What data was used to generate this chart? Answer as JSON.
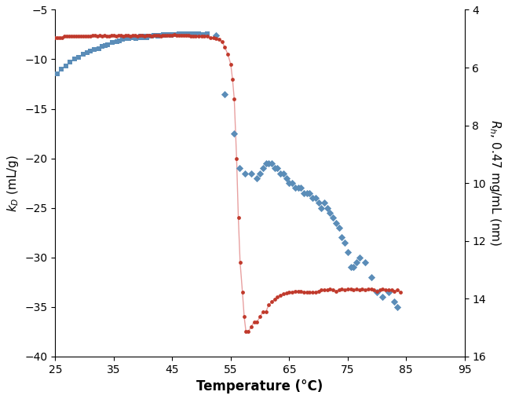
{
  "xlabel": "Temperature (°C)",
  "ylabel_left": "k$_D$ (mL/g)",
  "ylabel_right": "R$_{h}$, 0.47 mg/mL (nm)",
  "xlim": [
    25,
    95
  ],
  "ylim_left": [
    -40,
    -5
  ],
  "ylim_right": [
    16,
    4
  ],
  "xticks": [
    25,
    35,
    45,
    55,
    65,
    75,
    85,
    95
  ],
  "yticks_left": [
    -40,
    -35,
    -30,
    -25,
    -20,
    -15,
    -10,
    -5
  ],
  "yticks_right": [
    4,
    6,
    8,
    10,
    12,
    14,
    16
  ],
  "blue_squares_x": [
    25.3,
    26.0,
    26.8,
    27.5,
    28.3,
    29.0,
    29.8,
    30.5,
    31.0,
    31.7,
    32.4,
    33.0,
    33.5,
    34.0,
    34.8,
    35.5,
    36.0,
    36.5,
    37.0,
    37.5,
    38.0,
    38.5,
    38.8,
    39.2,
    39.6,
    39.8,
    40.1,
    40.4,
    40.7,
    41.0,
    41.5,
    41.8,
    42.2,
    42.5,
    42.8,
    43.2,
    43.5,
    43.8,
    44.1,
    44.4,
    44.8,
    45.1,
    45.4,
    45.8,
    46.2,
    46.5,
    46.9,
    47.2,
    47.5,
    47.9,
    48.2,
    48.6,
    49.0,
    49.5,
    50.0,
    50.5,
    51.0
  ],
  "blue_squares_y": [
    -11.5,
    -11.0,
    -10.7,
    -10.3,
    -10.0,
    -9.8,
    -9.5,
    -9.3,
    -9.2,
    -9.0,
    -8.9,
    -8.7,
    -8.6,
    -8.5,
    -8.3,
    -8.2,
    -8.1,
    -8.0,
    -7.9,
    -7.9,
    -7.8,
    -7.8,
    -7.9,
    -7.8,
    -7.7,
    -7.8,
    -7.7,
    -7.7,
    -7.8,
    -7.7,
    -7.7,
    -7.6,
    -7.6,
    -7.7,
    -7.6,
    -7.6,
    -7.5,
    -7.6,
    -7.5,
    -7.5,
    -7.6,
    -7.5,
    -7.5,
    -7.5,
    -7.4,
    -7.5,
    -7.4,
    -7.5,
    -7.4,
    -7.4,
    -7.5,
    -7.4,
    -7.4,
    -7.4,
    -7.5,
    -7.5,
    -7.4
  ],
  "blue_diamonds_x": [
    52.5,
    54.0,
    55.5,
    56.5,
    57.5,
    58.5,
    59.5,
    60.0,
    60.5,
    61.0,
    61.5,
    62.0,
    62.5,
    63.0,
    63.5,
    64.0,
    64.5,
    65.0,
    65.5,
    66.0,
    66.5,
    67.0,
    67.5,
    68.0,
    68.5,
    69.0,
    69.5,
    70.0,
    70.5,
    71.0,
    71.5,
    72.0,
    72.5,
    73.0,
    73.5,
    74.0,
    74.5,
    75.0,
    75.5,
    76.0,
    76.5,
    77.0,
    78.0,
    79.0,
    80.0,
    81.0,
    82.0,
    83.0,
    83.5
  ],
  "blue_diamonds_y": [
    -7.6,
    -13.5,
    -17.5,
    -21.0,
    -21.5,
    -21.5,
    -22.0,
    -21.5,
    -21.0,
    -20.5,
    -20.5,
    -20.5,
    -21.0,
    -21.0,
    -21.5,
    -21.5,
    -22.0,
    -22.5,
    -22.5,
    -23.0,
    -23.0,
    -23.0,
    -23.5,
    -23.5,
    -23.5,
    -24.0,
    -24.0,
    -24.5,
    -25.0,
    -24.5,
    -25.0,
    -25.5,
    -26.0,
    -26.5,
    -27.0,
    -28.0,
    -28.5,
    -29.5,
    -31.0,
    -31.0,
    -30.5,
    -30.0,
    -30.5,
    -32.0,
    -33.5,
    -34.0,
    -33.5,
    -34.5,
    -35.0
  ],
  "red_line_x": [
    25.0,
    25.4,
    25.8,
    26.2,
    26.6,
    27.0,
    27.4,
    27.8,
    28.2,
    28.6,
    29.0,
    29.4,
    29.8,
    30.2,
    30.6,
    31.0,
    31.4,
    31.8,
    32.2,
    32.6,
    33.0,
    33.4,
    33.8,
    34.2,
    34.6,
    35.0,
    35.4,
    35.8,
    36.2,
    36.6,
    37.0,
    37.4,
    37.8,
    38.2,
    38.6,
    39.0,
    39.4,
    39.8,
    40.2,
    40.6,
    41.0,
    41.4,
    41.8,
    42.2,
    42.6,
    43.0,
    43.4,
    43.8,
    44.2,
    44.6,
    45.0,
    45.4,
    45.8,
    46.2,
    46.6,
    47.0,
    47.4,
    47.8,
    48.2,
    48.6,
    49.0,
    49.5,
    50.0,
    50.5,
    51.0,
    51.5,
    52.0,
    52.5,
    53.0,
    53.5,
    54.0,
    54.5,
    55.0,
    55.3,
    55.6,
    56.0,
    56.3,
    56.6,
    57.0,
    57.3,
    57.6,
    58.0,
    58.5,
    59.0,
    59.5,
    60.0,
    60.5,
    61.0,
    61.5,
    62.0,
    62.5,
    63.0,
    63.5,
    64.0,
    64.5,
    65.0,
    65.5,
    66.0,
    66.5,
    67.0,
    67.5,
    68.0,
    68.5,
    69.0,
    69.5,
    70.0,
    70.5,
    71.0,
    71.5,
    72.0,
    72.5,
    73.0,
    73.5,
    74.0,
    74.5,
    75.0,
    75.5,
    76.0,
    76.5,
    77.0,
    77.5,
    78.0,
    78.5,
    79.0,
    79.5,
    80.0,
    80.5,
    81.0,
    81.5,
    82.0,
    82.5,
    83.0,
    83.5,
    84.0
  ],
  "red_line_y": [
    -7.8,
    -7.8,
    -7.8,
    -7.8,
    -7.7,
    -7.7,
    -7.7,
    -7.7,
    -7.7,
    -7.7,
    -7.7,
    -7.7,
    -7.7,
    -7.7,
    -7.7,
    -7.7,
    -7.6,
    -7.6,
    -7.7,
    -7.6,
    -7.7,
    -7.6,
    -7.7,
    -7.7,
    -7.6,
    -7.6,
    -7.7,
    -7.6,
    -7.6,
    -7.7,
    -7.6,
    -7.6,
    -7.7,
    -7.6,
    -7.6,
    -7.7,
    -7.6,
    -7.6,
    -7.7,
    -7.6,
    -7.6,
    -7.7,
    -7.6,
    -7.6,
    -7.6,
    -7.7,
    -7.6,
    -7.6,
    -7.6,
    -7.6,
    -7.6,
    -7.5,
    -7.6,
    -7.6,
    -7.6,
    -7.6,
    -7.6,
    -7.6,
    -7.7,
    -7.7,
    -7.7,
    -7.7,
    -7.7,
    -7.7,
    -7.7,
    -7.8,
    -7.8,
    -7.9,
    -8.0,
    -8.2,
    -8.8,
    -9.5,
    -10.5,
    -12.0,
    -14.0,
    -20.0,
    -26.0,
    -30.5,
    -33.5,
    -36.0,
    -37.5,
    -37.5,
    -37.0,
    -36.5,
    -36.5,
    -36.0,
    -35.5,
    -35.5,
    -34.8,
    -34.5,
    -34.2,
    -34.0,
    -33.8,
    -33.7,
    -33.6,
    -33.5,
    -33.5,
    -33.4,
    -33.4,
    -33.4,
    -33.5,
    -33.5,
    -33.5,
    -33.5,
    -33.5,
    -33.4,
    -33.3,
    -33.3,
    -33.3,
    -33.2,
    -33.3,
    -33.4,
    -33.3,
    -33.2,
    -33.3,
    -33.2,
    -33.2,
    -33.3,
    -33.2,
    -33.3,
    -33.2,
    -33.3,
    -33.2,
    -33.2,
    -33.3,
    -33.4,
    -33.3,
    -33.2,
    -33.3,
    -33.3,
    -33.3,
    -33.4,
    -33.3,
    -33.5
  ],
  "blue_color": "#5B8DB8",
  "red_color": "#C0392B",
  "line_color": "#E8A0A0",
  "background_color": "#FFFFFF"
}
